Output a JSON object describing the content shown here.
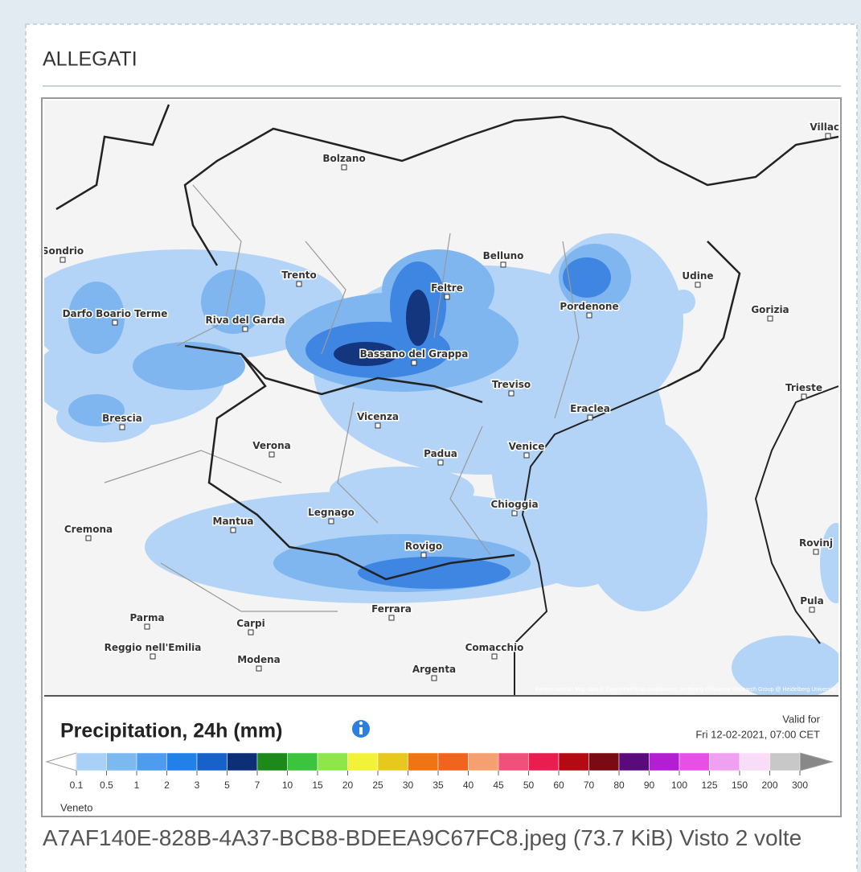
{
  "header": {
    "title": "ALLEGATI"
  },
  "map": {
    "places": [
      "Bolzano",
      "Sondrio",
      "Trento",
      "Belluno",
      "Udine",
      "Darfo Boario Terme",
      "Riva del Garda",
      "Feltre",
      "Pordenone",
      "Gorizia",
      "Bassano del Grappa",
      "Treviso",
      "Trieste",
      "Brescia",
      "Vicenza",
      "Eraclea",
      "Verona",
      "Padua",
      "Venice",
      "Chioggia",
      "Cremona",
      "Mantua",
      "Legnago",
      "Rovigo",
      "Rovinj",
      "Parma",
      "Carpi",
      "Ferrara",
      "Pula",
      "Reggio nell'Emilia",
      "Modena",
      "Comacchio",
      "Argenta",
      "Villach"
    ],
    "attribution": "Kartenmaterial: Map data © OpenStreetMap contributors, rendering GIScience Research Group @ Heidelberg University"
  },
  "legend": {
    "title": "Precipitation, 24h (mm)",
    "valid_label": "Valid for",
    "valid_time": "Fri 12-02-2021, 07:00 CET",
    "ticks": [
      0.1,
      0.5,
      1,
      2,
      3,
      5,
      7,
      10,
      15,
      20,
      25,
      30,
      35,
      40,
      45,
      50,
      60,
      70,
      80,
      90,
      100,
      125,
      150,
      200,
      300
    ],
    "colors": [
      "#a9d1f7",
      "#7db9f1",
      "#4d9cee",
      "#2281e8",
      "#1762c8",
      "#0d2f78",
      "#1b8a1b",
      "#3cc43c",
      "#8fe64b",
      "#f2f23a",
      "#e6c81e",
      "#ef7414",
      "#f0641e",
      "#f5a070",
      "#f0507a",
      "#e81e50",
      "#b40a14",
      "#7a0a14",
      "#5a0a7a",
      "#b41ed2",
      "#e650e6",
      "#f0a0f0",
      "#f8dcf8",
      "#c8c8c8"
    ],
    "region": "Veneto"
  },
  "caption": "A7AF140E-828B-4A37-BCB8-BDEEA9C67FC8.jpeg (73.7 KiB) Visto 2 volte"
}
